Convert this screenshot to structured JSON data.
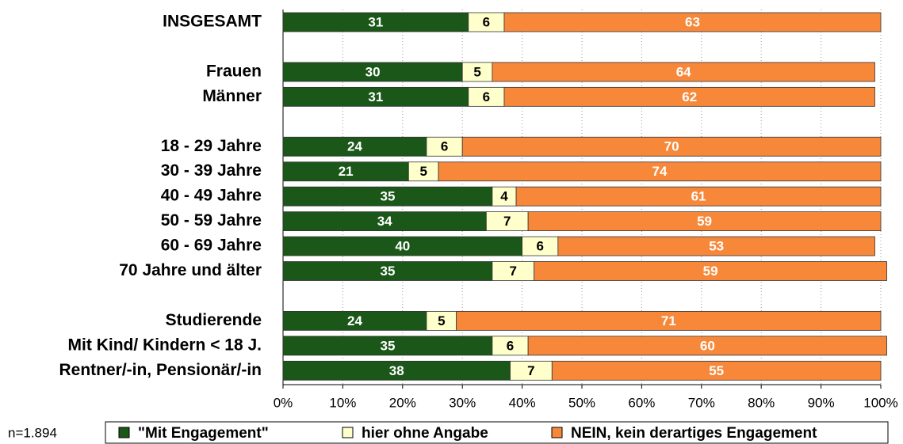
{
  "chart_data": {
    "type": "stacked-bar",
    "orientation": "horizontal",
    "categories": [
      "INSGESAMT",
      null,
      "Frauen",
      "Männer",
      null,
      "18 - 29 Jahre",
      "30 - 39 Jahre",
      "40 - 49 Jahre",
      "50 - 59 Jahre",
      "60 - 69 Jahre",
      "70 Jahre und älter",
      null,
      "Studierende",
      "Mit Kind/ Kindern < 18 J.",
      "Rentner/-in, Pensionär/-in"
    ],
    "series": [
      {
        "name": "\"Mit Engagement\"",
        "color": "#1a5718",
        "values": [
          31,
          null,
          30,
          31,
          null,
          24,
          21,
          35,
          34,
          40,
          35,
          null,
          24,
          35,
          38
        ]
      },
      {
        "name": "hier ohne Angabe",
        "color": "#ffffcc",
        "values": [
          6,
          null,
          5,
          6,
          null,
          6,
          5,
          4,
          7,
          6,
          7,
          null,
          5,
          6,
          7
        ]
      },
      {
        "name": "NEIN, kein derartiges Engagement",
        "color": "#f7883a",
        "values": [
          63,
          null,
          64,
          62,
          null,
          70,
          74,
          61,
          59,
          53,
          59,
          null,
          71,
          60,
          55
        ]
      }
    ],
    "xlim": [
      0,
      100
    ],
    "xticks": [
      {
        "value": 0,
        "label": "0%"
      },
      {
        "value": 10,
        "label": "10%"
      },
      {
        "value": 20,
        "label": "20%"
      },
      {
        "value": 30,
        "label": "30%"
      },
      {
        "value": 40,
        "label": "40%"
      },
      {
        "value": 50,
        "label": "50%"
      },
      {
        "value": 60,
        "label": "60%"
      },
      {
        "value": 70,
        "label": "70%"
      },
      {
        "value": 80,
        "label": "80%"
      },
      {
        "value": 90,
        "label": "90%"
      },
      {
        "value": 100,
        "label": "100%"
      }
    ],
    "grid": true,
    "legend": "bottom",
    "annotation": "n=1.894"
  }
}
